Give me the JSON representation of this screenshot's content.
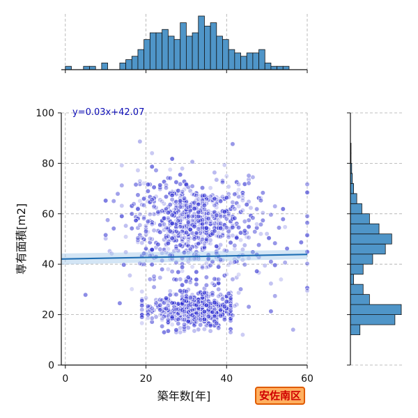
{
  "chart_data": {
    "type": "scatter",
    "xlabel": "築年数[年]",
    "ylabel": "専有面積[m2]",
    "xlim": [
      -1,
      60
    ],
    "ylim": [
      0,
      100
    ],
    "xticks": [
      0,
      20,
      40,
      60
    ],
    "yticks": [
      0,
      20,
      40,
      60,
      80,
      100
    ],
    "grid": true,
    "regression": {
      "label": "y=0.03x+42.07",
      "slope": 0.03,
      "intercept": 42.07,
      "color": "#1f6fb4"
    },
    "region_label": "安佐南区",
    "point_color": "#2a2ad0",
    "hist_color": "#4f95c8",
    "x_histogram": {
      "bin_width": 1.5,
      "bin_start": 0,
      "counts": [
        1,
        0,
        0,
        1,
        1,
        0,
        2,
        0,
        0,
        2,
        3,
        4,
        6,
        9,
        11,
        11,
        12,
        10,
        9,
        14,
        10,
        11,
        16,
        13,
        14,
        10,
        9,
        6,
        5,
        4,
        5,
        5,
        6,
        2,
        1,
        1,
        1,
        0,
        0,
        0
      ]
    },
    "y_histogram": {
      "bin_width": 4,
      "bin_start": 12,
      "counts": [
        15,
        70,
        80,
        30,
        20,
        5,
        20,
        35,
        55,
        65,
        45,
        30,
        18,
        10,
        5,
        3,
        2,
        1,
        1,
        0,
        0,
        0
      ]
    }
  }
}
